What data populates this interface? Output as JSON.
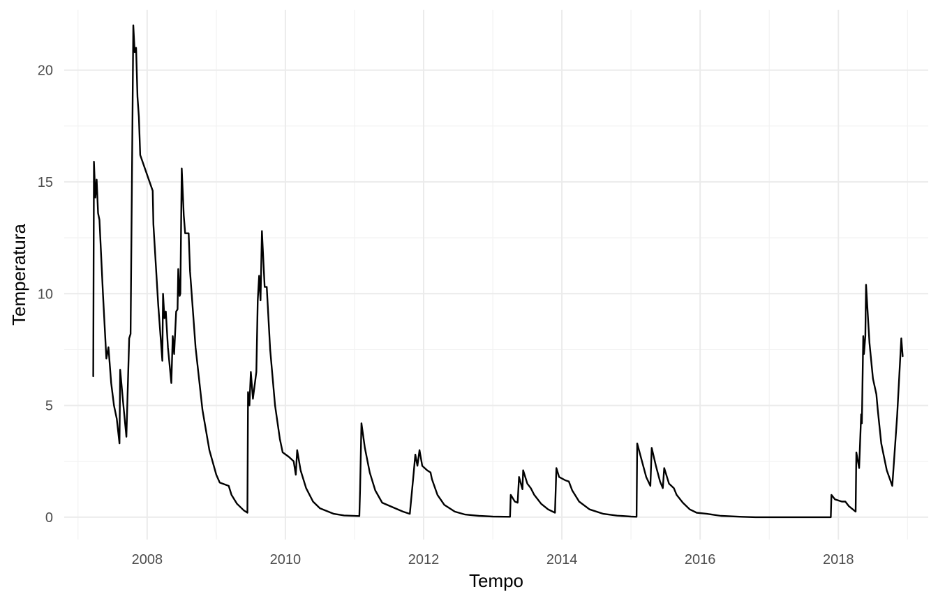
{
  "chart_data": {
    "type": "line",
    "title": "",
    "xlabel": "Tempo",
    "ylabel": "Temperatura",
    "grid": true,
    "xlim": [
      2006.8,
      2019.3
    ],
    "ylim": [
      -1.0,
      22.7
    ],
    "x_ticks": [
      2008,
      2010,
      2012,
      2014,
      2016,
      2018
    ],
    "x_tick_labels": [
      "2008",
      "2010",
      "2012",
      "2014",
      "2016",
      "2018"
    ],
    "x_minor_ticks": [
      2007,
      2009,
      2011,
      2013,
      2015,
      2017,
      2019
    ],
    "y_ticks": [
      0,
      5,
      10,
      15,
      20
    ],
    "y_tick_labels": [
      "0",
      "5",
      "10",
      "15",
      "20"
    ],
    "y_minor_ticks": [
      2.5,
      7.5,
      12.5,
      17.5
    ],
    "series": [
      {
        "color": "#000000",
        "points": [
          [
            2007.22,
            6.3
          ],
          [
            2007.23,
            15.9
          ],
          [
            2007.25,
            14.3
          ],
          [
            2007.27,
            15.1
          ],
          [
            2007.29,
            13.6
          ],
          [
            2007.31,
            13.3
          ],
          [
            2007.36,
            10.0
          ],
          [
            2007.41,
            7.1
          ],
          [
            2007.44,
            7.6
          ],
          [
            2007.48,
            6.0
          ],
          [
            2007.52,
            5.0
          ],
          [
            2007.56,
            4.4
          ],
          [
            2007.6,
            3.3
          ],
          [
            2007.61,
            6.6
          ],
          [
            2007.65,
            5.2
          ],
          [
            2007.7,
            3.6
          ],
          [
            2007.74,
            8.0
          ],
          [
            2007.76,
            8.2
          ],
          [
            2007.8,
            22.0
          ],
          [
            2007.82,
            20.8
          ],
          [
            2007.84,
            21.0
          ],
          [
            2007.86,
            18.8
          ],
          [
            2007.88,
            17.9
          ],
          [
            2007.9,
            16.2
          ],
          [
            2008.08,
            14.6
          ],
          [
            2008.09,
            13.1
          ],
          [
            2008.16,
            9.5
          ],
          [
            2008.22,
            7.0
          ],
          [
            2008.23,
            10.0
          ],
          [
            2008.25,
            8.9
          ],
          [
            2008.27,
            9.2
          ],
          [
            2008.3,
            7.6
          ],
          [
            2008.35,
            6.0
          ],
          [
            2008.37,
            8.1
          ],
          [
            2008.39,
            7.3
          ],
          [
            2008.42,
            9.2
          ],
          [
            2008.44,
            9.3
          ],
          [
            2008.45,
            11.1
          ],
          [
            2008.47,
            9.9
          ],
          [
            2008.48,
            10.0
          ],
          [
            2008.5,
            15.6
          ],
          [
            2008.53,
            13.5
          ],
          [
            2008.55,
            12.7
          ],
          [
            2008.6,
            12.7
          ],
          [
            2008.62,
            11.0
          ],
          [
            2008.7,
            7.6
          ],
          [
            2008.8,
            4.8
          ],
          [
            2008.9,
            3.0
          ],
          [
            2009.0,
            1.9
          ],
          [
            2009.05,
            1.55
          ],
          [
            2009.18,
            1.4
          ],
          [
            2009.22,
            1.0
          ],
          [
            2009.3,
            0.6
          ],
          [
            2009.4,
            0.3
          ],
          [
            2009.45,
            0.2
          ],
          [
            2009.46,
            5.6
          ],
          [
            2009.48,
            5.0
          ],
          [
            2009.5,
            6.5
          ],
          [
            2009.53,
            5.3
          ],
          [
            2009.58,
            6.5
          ],
          [
            2009.6,
            9.7
          ],
          [
            2009.62,
            10.8
          ],
          [
            2009.64,
            9.7
          ],
          [
            2009.66,
            12.8
          ],
          [
            2009.7,
            10.3
          ],
          [
            2009.73,
            10.3
          ],
          [
            2009.78,
            7.5
          ],
          [
            2009.85,
            5.0
          ],
          [
            2009.92,
            3.5
          ],
          [
            2009.96,
            2.9
          ],
          [
            2010.05,
            2.7
          ],
          [
            2010.12,
            2.5
          ],
          [
            2010.15,
            1.9
          ],
          [
            2010.17,
            3.0
          ],
          [
            2010.22,
            2.1
          ],
          [
            2010.3,
            1.3
          ],
          [
            2010.4,
            0.7
          ],
          [
            2010.5,
            0.4
          ],
          [
            2010.7,
            0.15
          ],
          [
            2010.85,
            0.08
          ],
          [
            2011.07,
            0.05
          ],
          [
            2011.08,
            1.2
          ],
          [
            2011.1,
            4.2
          ],
          [
            2011.15,
            3.1
          ],
          [
            2011.22,
            2.0
          ],
          [
            2011.3,
            1.2
          ],
          [
            2011.4,
            0.65
          ],
          [
            2011.55,
            0.45
          ],
          [
            2011.7,
            0.25
          ],
          [
            2011.8,
            0.15
          ],
          [
            2011.85,
            1.8
          ],
          [
            2011.88,
            2.8
          ],
          [
            2011.91,
            2.3
          ],
          [
            2011.94,
            3.0
          ],
          [
            2011.98,
            2.3
          ],
          [
            2012.05,
            2.1
          ],
          [
            2012.1,
            2.0
          ],
          [
            2012.12,
            1.7
          ],
          [
            2012.2,
            1.0
          ],
          [
            2012.3,
            0.55
          ],
          [
            2012.45,
            0.25
          ],
          [
            2012.6,
            0.12
          ],
          [
            2012.8,
            0.06
          ],
          [
            2013.0,
            0.03
          ],
          [
            2013.25,
            0.02
          ],
          [
            2013.26,
            1.0
          ],
          [
            2013.32,
            0.7
          ],
          [
            2013.36,
            0.65
          ],
          [
            2013.38,
            1.8
          ],
          [
            2013.43,
            1.25
          ],
          [
            2013.44,
            2.1
          ],
          [
            2013.5,
            1.5
          ],
          [
            2013.55,
            1.3
          ],
          [
            2013.6,
            1.0
          ],
          [
            2013.7,
            0.6
          ],
          [
            2013.8,
            0.35
          ],
          [
            2013.9,
            0.2
          ],
          [
            2013.92,
            2.2
          ],
          [
            2013.96,
            1.8
          ],
          [
            2014.05,
            1.65
          ],
          [
            2014.1,
            1.6
          ],
          [
            2014.15,
            1.2
          ],
          [
            2014.25,
            0.7
          ],
          [
            2014.4,
            0.35
          ],
          [
            2014.6,
            0.15
          ],
          [
            2014.8,
            0.07
          ],
          [
            2015.0,
            0.03
          ],
          [
            2015.08,
            0.02
          ],
          [
            2015.09,
            3.3
          ],
          [
            2015.15,
            2.6
          ],
          [
            2015.22,
            1.8
          ],
          [
            2015.28,
            1.4
          ],
          [
            2015.3,
            3.1
          ],
          [
            2015.36,
            2.3
          ],
          [
            2015.42,
            1.6
          ],
          [
            2015.46,
            1.3
          ],
          [
            2015.48,
            2.2
          ],
          [
            2015.55,
            1.5
          ],
          [
            2015.62,
            1.3
          ],
          [
            2015.66,
            1.0
          ],
          [
            2015.75,
            0.65
          ],
          [
            2015.85,
            0.35
          ],
          [
            2015.95,
            0.2
          ],
          [
            2016.1,
            0.15
          ],
          [
            2016.3,
            0.06
          ],
          [
            2016.6,
            0.02
          ],
          [
            2016.8,
            0.0
          ],
          [
            2017.0,
            0.0
          ],
          [
            2017.5,
            0.0
          ],
          [
            2017.89,
            0.0
          ],
          [
            2017.9,
            1.0
          ],
          [
            2017.95,
            0.8
          ],
          [
            2018.05,
            0.7
          ],
          [
            2018.1,
            0.7
          ],
          [
            2018.15,
            0.5
          ],
          [
            2018.25,
            0.25
          ],
          [
            2018.26,
            2.9
          ],
          [
            2018.3,
            2.2
          ],
          [
            2018.33,
            4.6
          ],
          [
            2018.34,
            4.2
          ],
          [
            2018.36,
            8.1
          ],
          [
            2018.37,
            7.3
          ],
          [
            2018.39,
            8.1
          ],
          [
            2018.4,
            10.4
          ],
          [
            2018.45,
            7.8
          ],
          [
            2018.5,
            6.2
          ],
          [
            2018.55,
            5.5
          ],
          [
            2018.57,
            4.8
          ],
          [
            2018.62,
            3.3
          ],
          [
            2018.7,
            2.1
          ],
          [
            2018.78,
            1.4
          ],
          [
            2018.85,
            4.5
          ],
          [
            2018.91,
            8.0
          ],
          [
            2018.93,
            7.2
          ]
        ]
      }
    ]
  }
}
